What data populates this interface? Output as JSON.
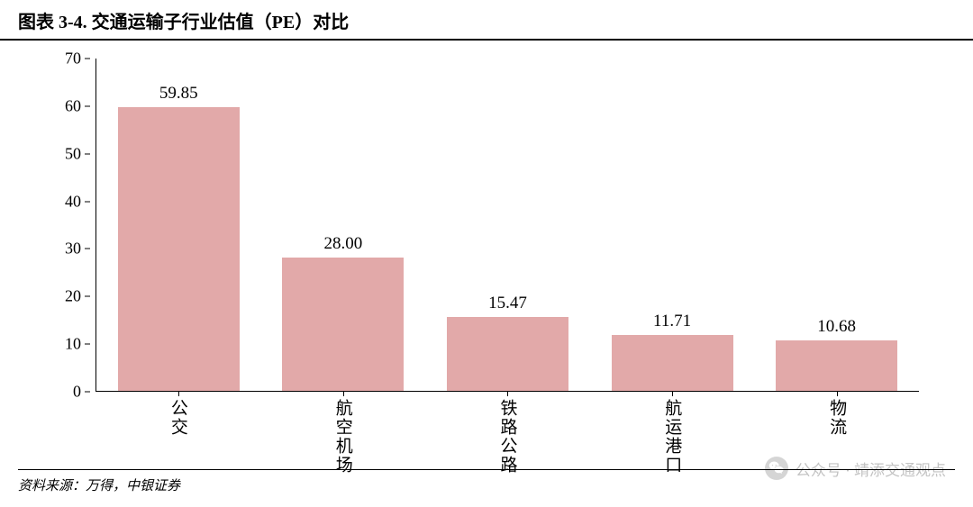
{
  "title": "图表 3-4. 交通运输子行业估值（PE）对比",
  "source": "资料来源：万得，中银证券",
  "watermark": {
    "prefix": "公众号 · ",
    "name": "靖添交通观点"
  },
  "chart": {
    "type": "bar",
    "ylim": [
      0,
      70
    ],
    "ytick_step": 10,
    "yticks": [
      0,
      10,
      20,
      30,
      40,
      50,
      60,
      70
    ],
    "bar_color": "#e2a9a9",
    "axis_color": "#000000",
    "background_color": "#ffffff",
    "value_fontsize": 19,
    "axis_fontsize": 18,
    "label_fontsize": 19,
    "bar_width_ratio": 0.74,
    "categories": [
      "公交",
      "航空机场",
      "铁路公路",
      "航运港口",
      "物流"
    ],
    "values": [
      59.85,
      28.0,
      15.47,
      11.71,
      10.68
    ],
    "value_labels": [
      "59.85",
      "28.00",
      "15.47",
      "11.71",
      "10.68"
    ]
  }
}
